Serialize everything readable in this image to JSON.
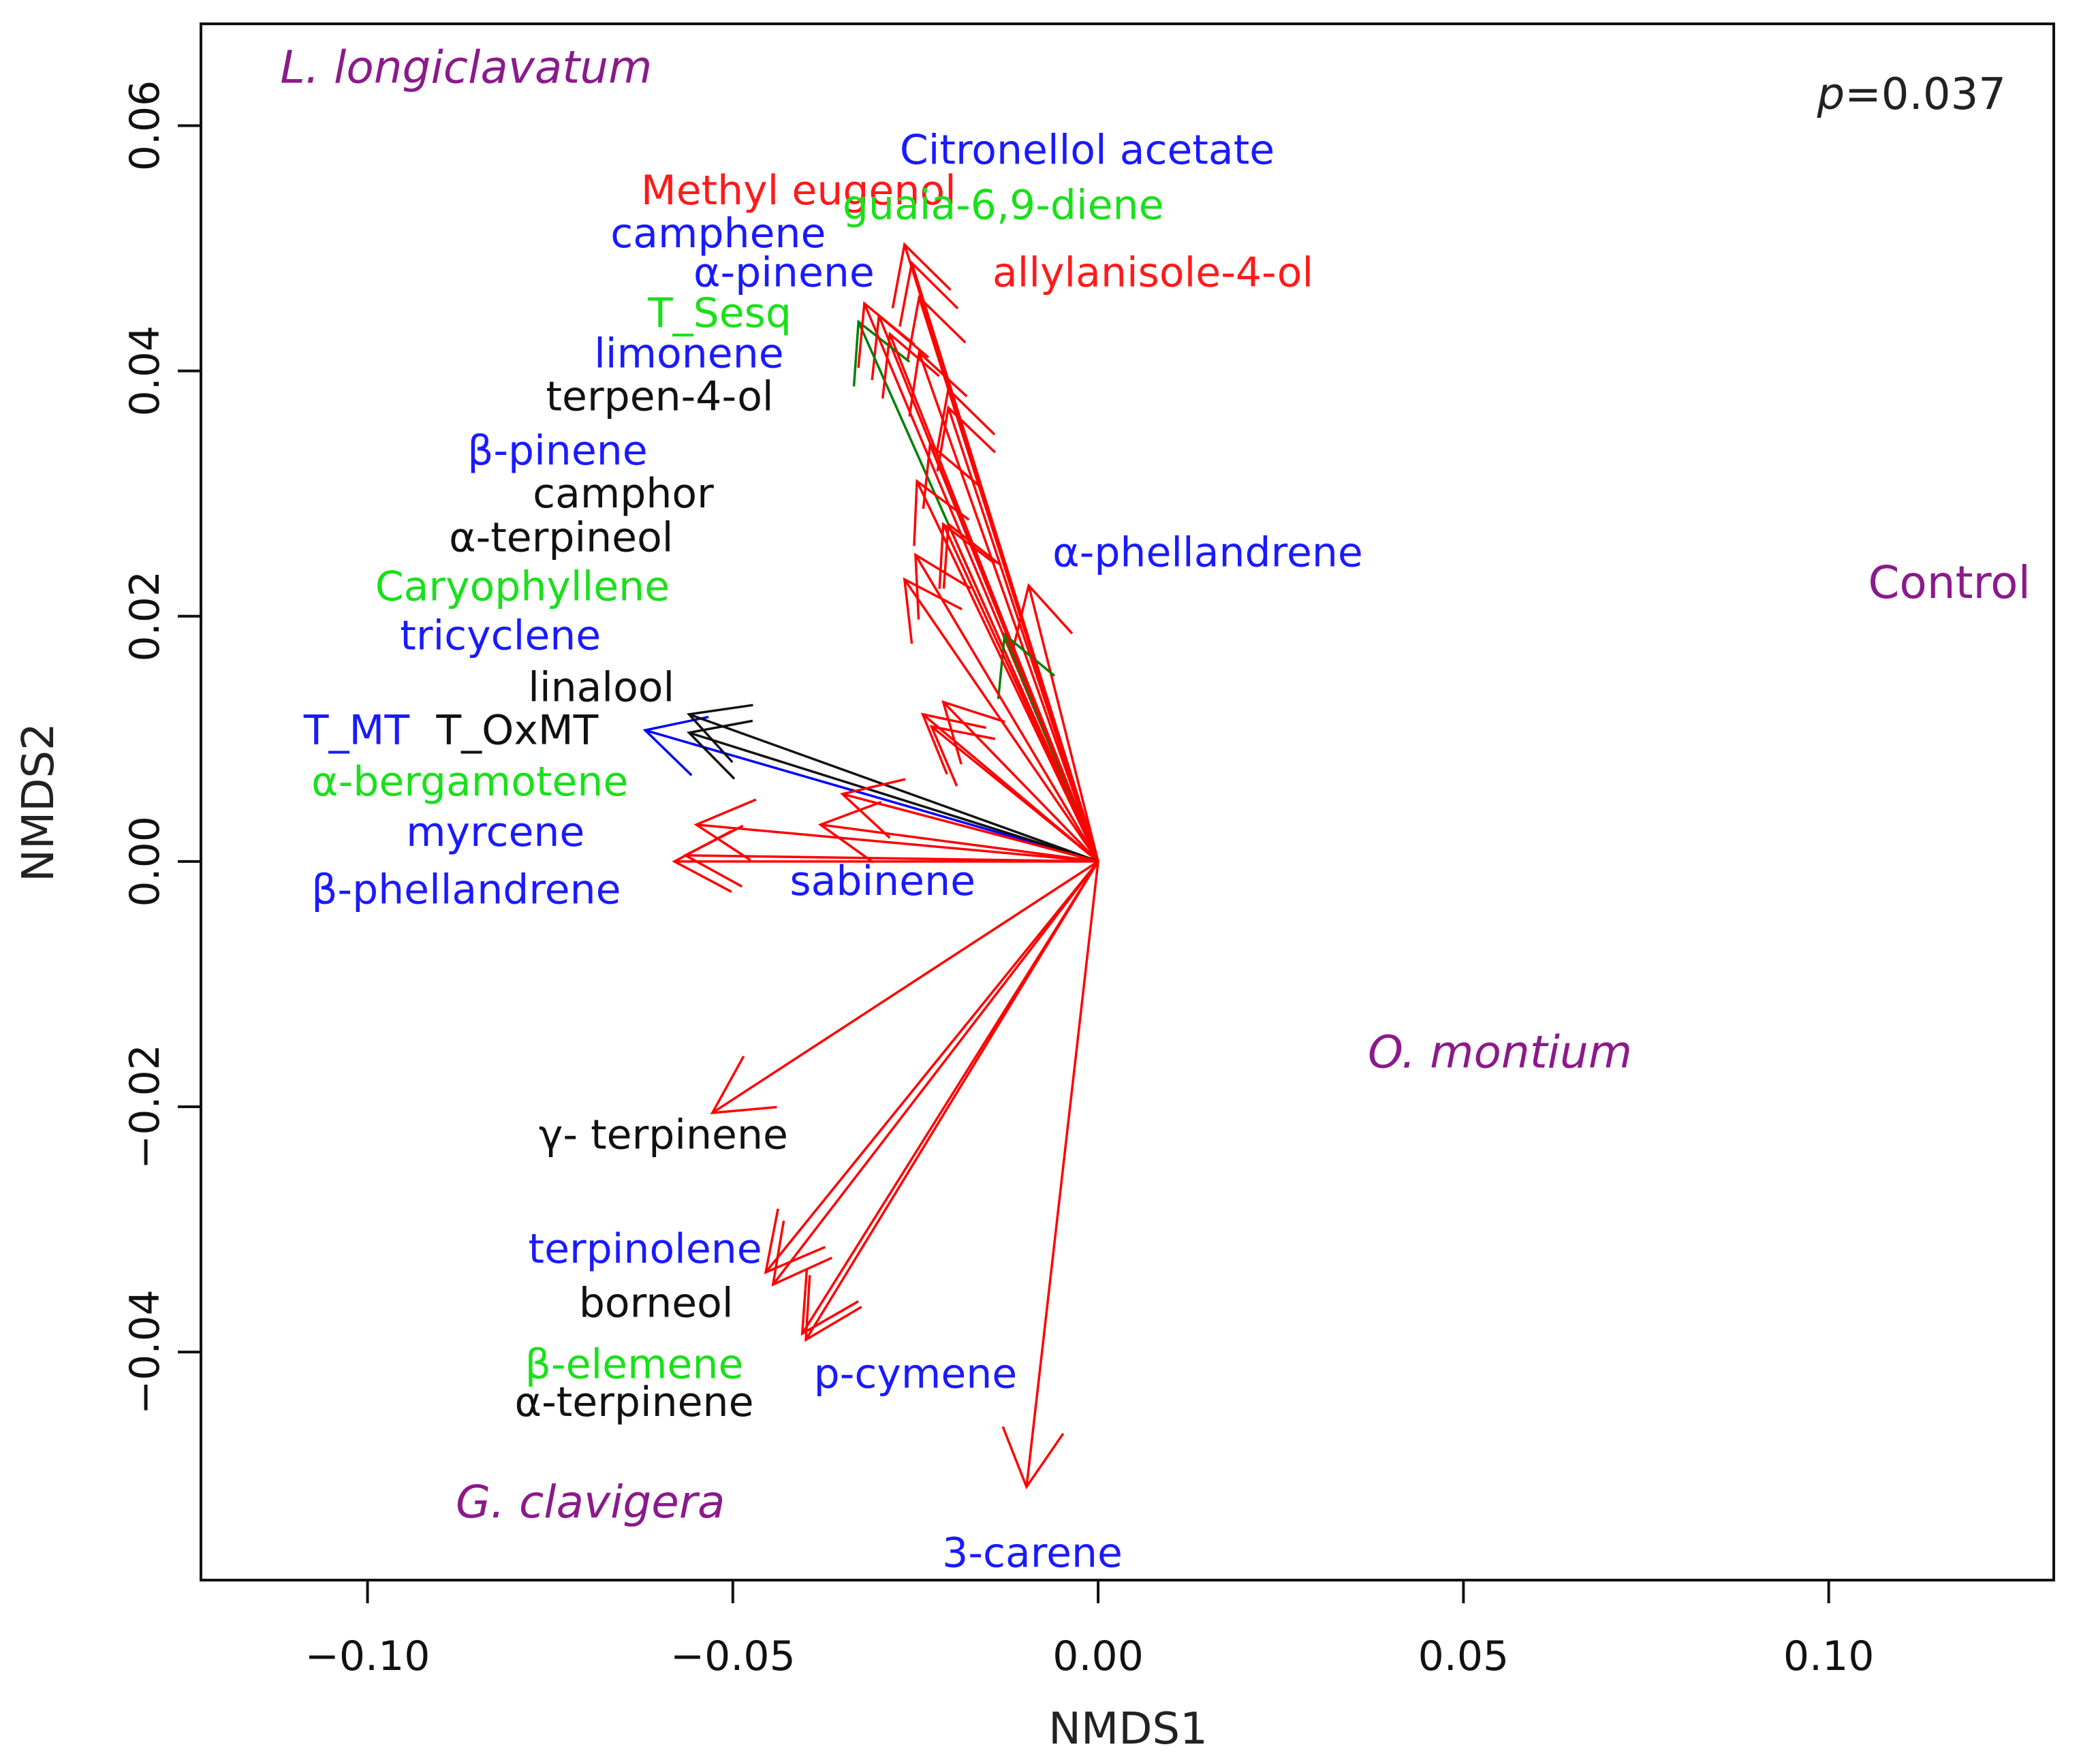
{
  "chart_data": {
    "type": "scatter",
    "subtype": "NMDS biplot with vectors",
    "xlabel": "NMDS1",
    "ylabel": "NMDS2",
    "xlim": [
      -0.1228,
      0.1308
    ],
    "ylim": [
      -0.0586,
      0.0683
    ],
    "xticks": [
      -0.1,
      -0.05,
      0.0,
      0.05,
      0.1
    ],
    "xtick_labels": [
      "−0.10",
      "−0.05",
      "0.00",
      "0.05",
      "0.10"
    ],
    "yticks": [
      -0.04,
      -0.02,
      0.0,
      0.02,
      0.04,
      0.06
    ],
    "ytick_labels": [
      "−0.04",
      "−0.02",
      "0.00",
      "0.02",
      "0.04",
      "0.06"
    ],
    "annotation": {
      "p_symbol": "p",
      "p_value": "=0.037"
    },
    "groups": [
      {
        "name": "L. longiclavatum",
        "italic": true,
        "x": -0.0865,
        "y": 0.0645,
        "color": "#8b1a8b"
      },
      {
        "name": "Control",
        "italic": false,
        "x": 0.1165,
        "y": 0.0225,
        "color": "#8b1a8b"
      },
      {
        "name": "O. montium",
        "italic": true,
        "x": 0.055,
        "y": -0.0158,
        "color": "#8b1a8b"
      },
      {
        "name": "G. clavigera",
        "italic": true,
        "x": -0.0695,
        "y": -0.0525,
        "color": "#8b1a8b"
      }
    ],
    "vectors": [
      {
        "x": -0.0265,
        "y": 0.0503,
        "color": "red"
      },
      {
        "x": -0.0255,
        "y": 0.0488,
        "color": "red"
      },
      {
        "x": -0.0245,
        "y": 0.046,
        "color": "red"
      },
      {
        "x": -0.03,
        "y": 0.0445,
        "color": "red"
      },
      {
        "x": -0.0328,
        "y": 0.044,
        "color": "green"
      },
      {
        "x": -0.032,
        "y": 0.0455,
        "color": "red"
      },
      {
        "x": -0.0285,
        "y": 0.043,
        "color": "red"
      },
      {
        "x": -0.0245,
        "y": 0.0415,
        "color": "red"
      },
      {
        "x": -0.0205,
        "y": 0.037,
        "color": "red"
      },
      {
        "x": -0.0205,
        "y": 0.0275,
        "color": "red"
      },
      {
        "x": -0.0095,
        "y": 0.0225,
        "color": "red"
      },
      {
        "x": -0.0128,
        "y": 0.0185,
        "color": "green"
      },
      {
        "x": -0.0205,
        "y": 0.0385,
        "color": "red"
      },
      {
        "x": -0.023,
        "y": 0.034,
        "color": "red"
      },
      {
        "x": -0.0248,
        "y": 0.031,
        "color": "red"
      },
      {
        "x": -0.0212,
        "y": 0.0275,
        "color": "red"
      },
      {
        "x": -0.025,
        "y": 0.025,
        "color": "red"
      },
      {
        "x": -0.0265,
        "y": 0.023,
        "color": "red"
      },
      {
        "x": -0.0212,
        "y": 0.013,
        "color": "red"
      },
      {
        "x": -0.024,
        "y": 0.012,
        "color": "red"
      },
      {
        "x": -0.0228,
        "y": 0.011,
        "color": "red"
      },
      {
        "x": -0.062,
        "y": 0.0107,
        "color": "blue"
      },
      {
        "x": -0.056,
        "y": 0.0105,
        "color": "#111111"
      },
      {
        "x": -0.056,
        "y": 0.012,
        "color": "#111111"
      },
      {
        "x": -0.035,
        "y": 0.0055,
        "color": "red"
      },
      {
        "x": -0.038,
        "y": 0.003,
        "color": "red"
      },
      {
        "x": -0.055,
        "y": 0.003,
        "color": "red"
      },
      {
        "x": -0.0565,
        "y": 0.0005,
        "color": "red"
      },
      {
        "x": -0.058,
        "y": 0.0,
        "color": "red"
      },
      {
        "x": -0.0528,
        "y": -0.0205,
        "color": "red"
      },
      {
        "x": -0.0455,
        "y": -0.0335,
        "color": "red"
      },
      {
        "x": -0.0445,
        "y": -0.0345,
        "color": "red"
      },
      {
        "x": -0.0405,
        "y": -0.0385,
        "color": "red"
      },
      {
        "x": -0.04,
        "y": -0.039,
        "color": "red"
      },
      {
        "x": -0.0098,
        "y": -0.051,
        "color": "red"
      }
    ],
    "labels": [
      {
        "text": "Citronellol acetate",
        "x": -0.0015,
        "y": 0.0578,
        "color": "#1a1aff"
      },
      {
        "text": "Methyl eugenol",
        "x": -0.041,
        "y": 0.0545,
        "color": "#ff1a1a"
      },
      {
        "text": "guaia-6,9-diene",
        "x": -0.013,
        "y": 0.0533,
        "color": "#1ae01a"
      },
      {
        "text": "camphene",
        "x": -0.052,
        "y": 0.051,
        "color": "#1a1aff"
      },
      {
        "text": "allylanisole-4-ol",
        "x": 0.0075,
        "y": 0.0478,
        "color": "#ff1a1a"
      },
      {
        "text": "α-pinene",
        "x": -0.043,
        "y": 0.0478,
        "color": "#1a1aff"
      },
      {
        "text": "T_Sesq",
        "x": -0.0518,
        "y": 0.0445,
        "color": "#1ae01a"
      },
      {
        "text": "limonene",
        "x": -0.056,
        "y": 0.0412,
        "color": "#1a1aff"
      },
      {
        "text": "terpen-4-ol",
        "x": -0.06,
        "y": 0.0377,
        "color": "#111111"
      },
      {
        "text": "β-pinene",
        "x": -0.074,
        "y": 0.0333,
        "color": "#1a1aff"
      },
      {
        "text": "camphor",
        "x": -0.065,
        "y": 0.0298,
        "color": "#111111"
      },
      {
        "text": "α-terpineol",
        "x": -0.0735,
        "y": 0.0262,
        "color": "#111111"
      },
      {
        "text": "α-phellandrene",
        "x": 0.015,
        "y": 0.025,
        "color": "#1a1aff"
      },
      {
        "text": "Caryophyllene",
        "x": -0.0788,
        "y": 0.0222,
        "color": "#1ae01a"
      },
      {
        "text": "tricyclene",
        "x": -0.0818,
        "y": 0.0182,
        "color": "#1a1aff"
      },
      {
        "text": "linalool",
        "x": -0.068,
        "y": 0.014,
        "color": "#111111"
      },
      {
        "text": "T_MT",
        "x": -0.1015,
        "y": 0.0105,
        "color": "#1a1aff"
      },
      {
        "text": "T_OxMT",
        "x": -0.0795,
        "y": 0.0105,
        "color": "#111111"
      },
      {
        "text": "α-bergamotene",
        "x": -0.086,
        "y": 0.0063,
        "color": "#1ae01a"
      },
      {
        "text": "myrcene",
        "x": -0.0825,
        "y": 0.0022,
        "color": "#1a1aff"
      },
      {
        "text": "β-phellandrene",
        "x": -0.0865,
        "y": -0.0025,
        "color": "#1a1aff"
      },
      {
        "text": "sabinene",
        "x": -0.0295,
        "y": -0.0018,
        "color": "#1a1aff"
      },
      {
        "text": "γ- terpinene",
        "x": -0.0595,
        "y": -0.0225,
        "color": "#111111"
      },
      {
        "text": "terpinolene",
        "x": -0.062,
        "y": -0.0318,
        "color": "#1a1aff"
      },
      {
        "text": "borneol",
        "x": -0.0605,
        "y": -0.0362,
        "color": "#111111"
      },
      {
        "text": "β-elemene",
        "x": -0.0635,
        "y": -0.0412,
        "color": "#1ae01a"
      },
      {
        "text": "p-cymene",
        "x": -0.025,
        "y": -0.042,
        "color": "#1a1aff"
      },
      {
        "text": "α-terpinene",
        "x": -0.0635,
        "y": -0.0443,
        "color": "#111111"
      },
      {
        "text": "3-carene",
        "x": -0.009,
        "y": -0.0566,
        "color": "#1a1aff"
      }
    ]
  }
}
